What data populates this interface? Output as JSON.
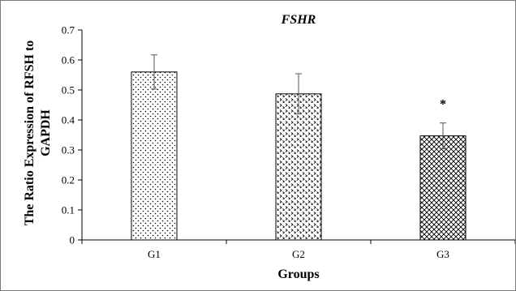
{
  "chart_data": {
    "type": "bar",
    "title": "FSHR",
    "xlabel": "Groups",
    "ylabel_lines": [
      "The Ratio Expression of RFSH to",
      "GAPDH"
    ],
    "categories": [
      "G1",
      "G2",
      "G3"
    ],
    "values": [
      0.56,
      0.487,
      0.347
    ],
    "errors": [
      0.057,
      0.067,
      0.043
    ],
    "annotations": [
      "",
      "",
      "*"
    ],
    "ylim": [
      0,
      0.7
    ],
    "yticks": [
      0,
      0.1,
      0.2,
      0.3,
      0.4,
      0.5,
      0.6,
      0.7
    ],
    "ytick_labels": [
      "0",
      "0.1",
      "0.2",
      "0.3",
      "0.4",
      "0.5",
      "0.6",
      "0.7"
    ],
    "grid": false,
    "legend": "none",
    "bar_patterns": [
      "sparse-dots",
      "dense-chevrons",
      "crosshatch"
    ],
    "colors": {
      "bar_fill": "#ffffff",
      "bar_stroke": "#000000",
      "axis": "#000000",
      "error_bar": "#555555"
    }
  }
}
